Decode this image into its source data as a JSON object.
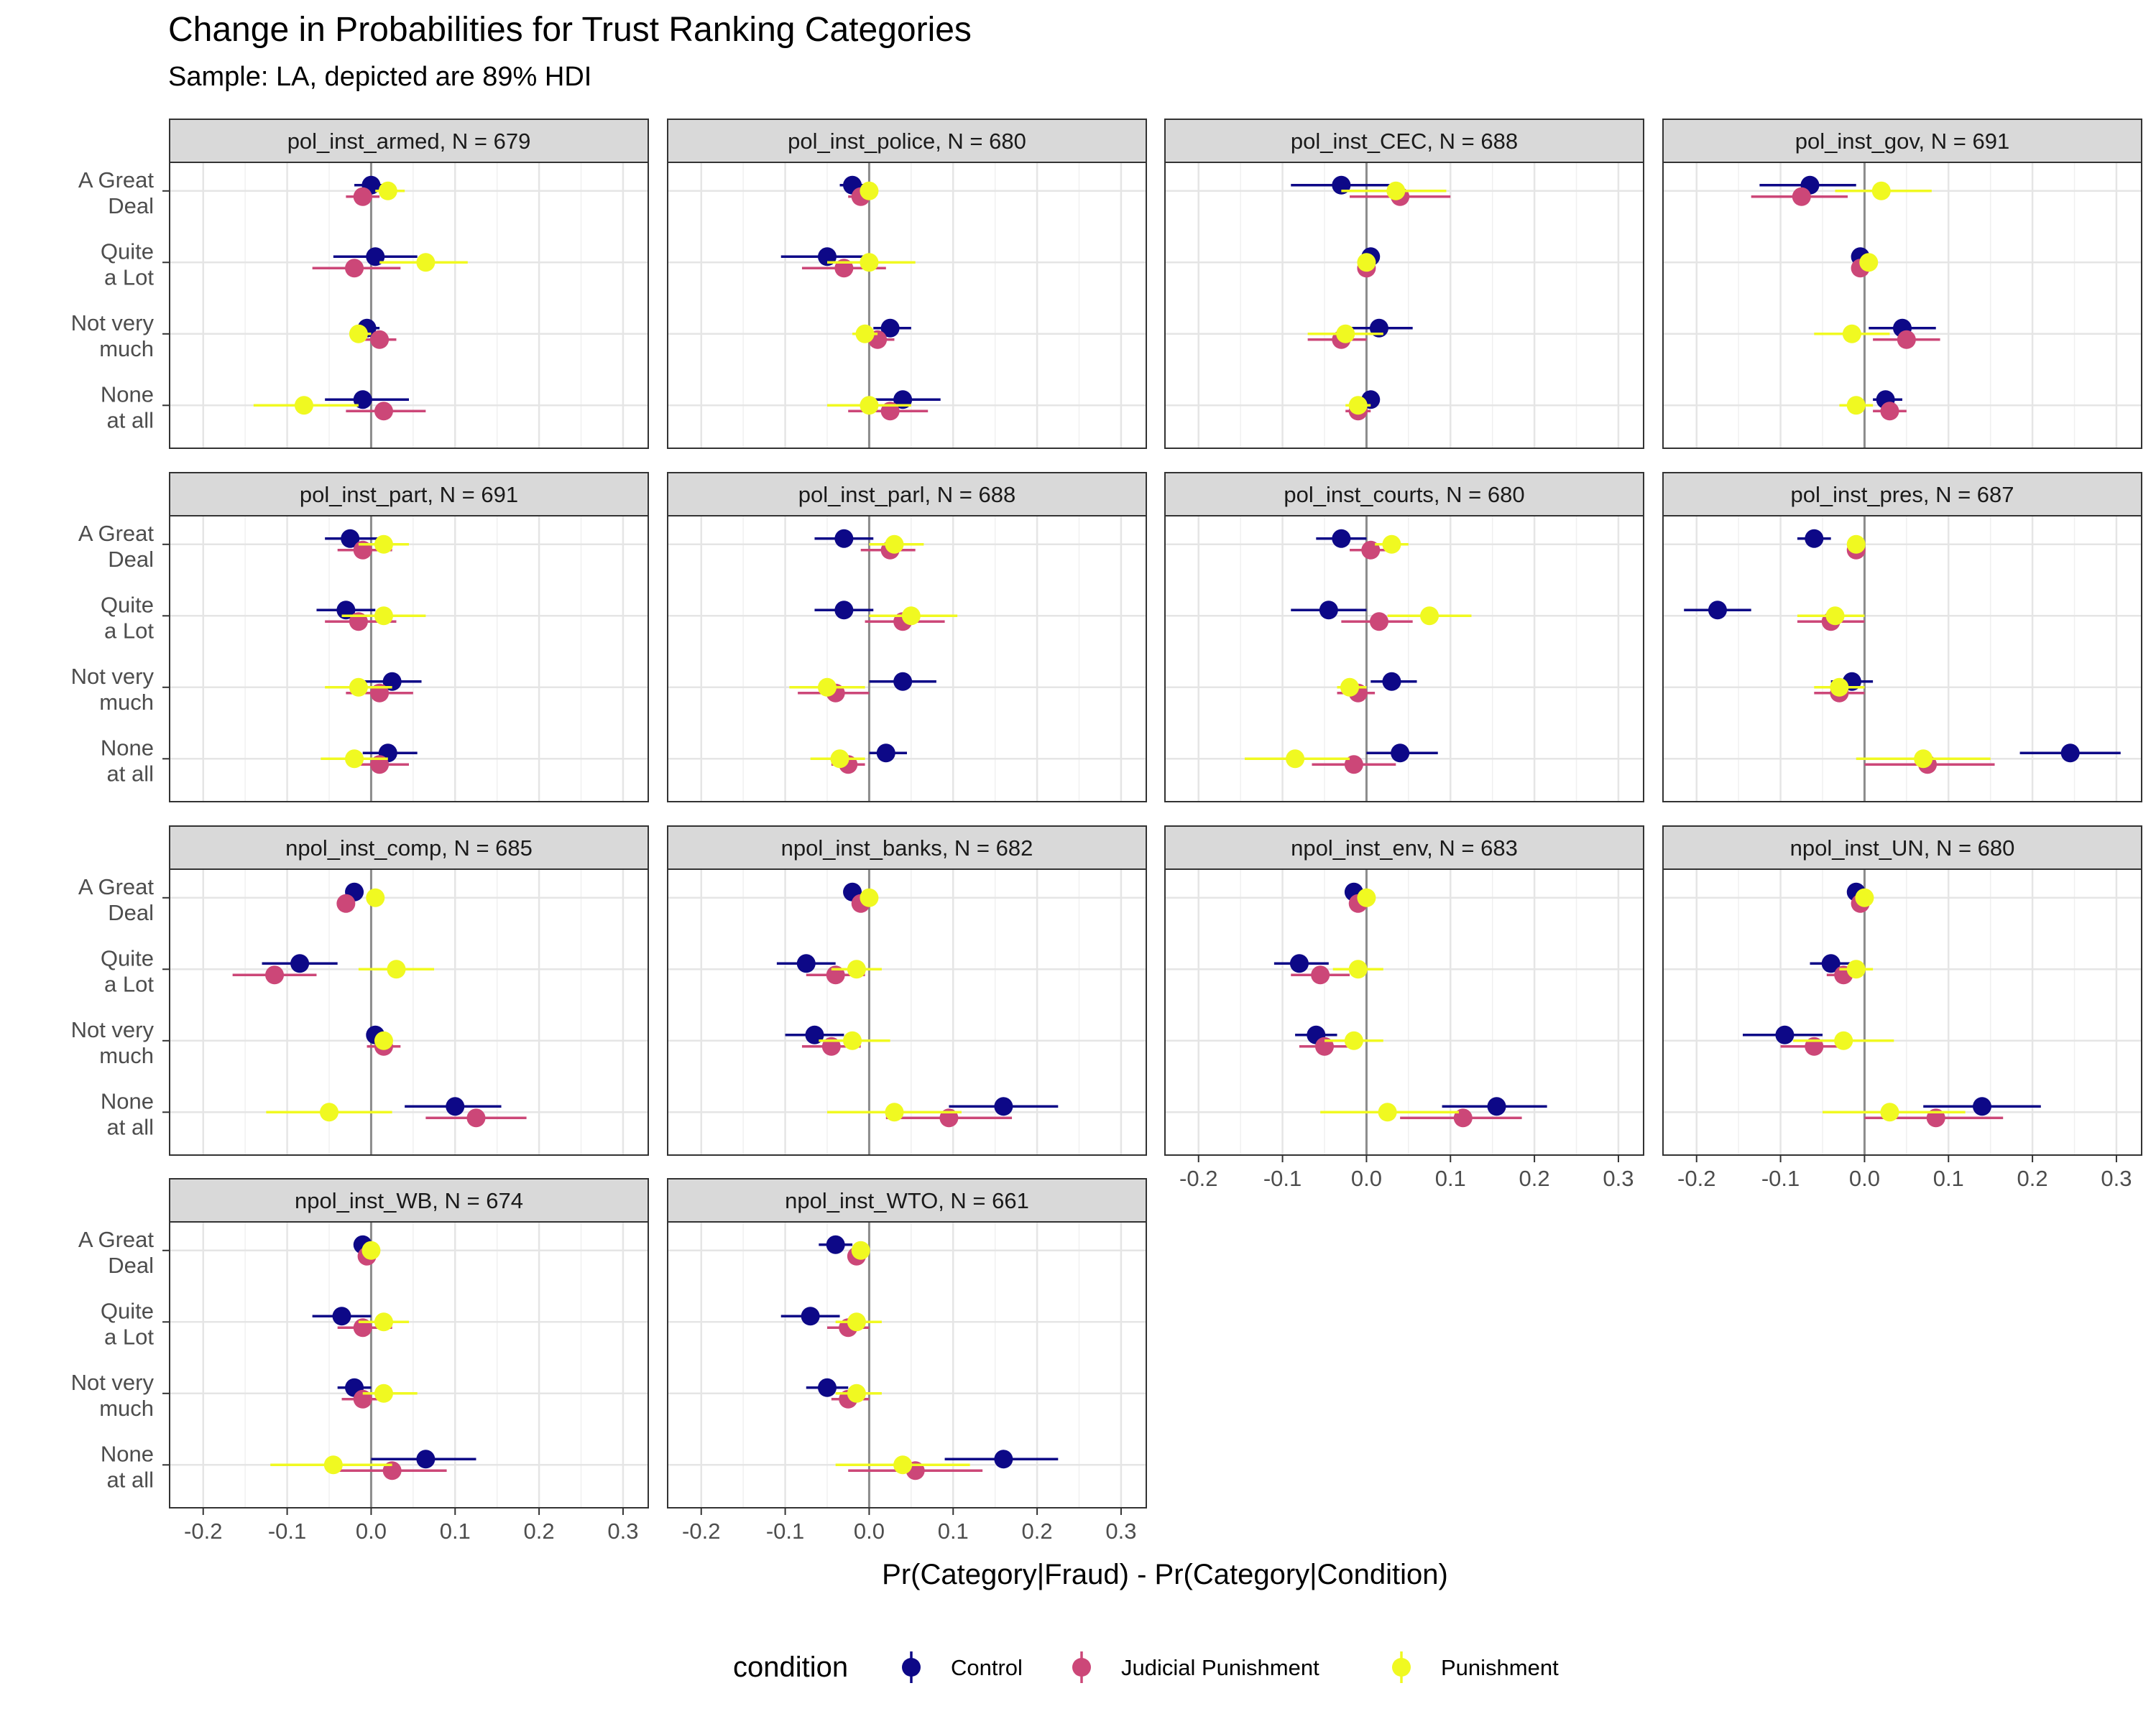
{
  "chart_data": {
    "type": "scatter",
    "title": "Change in Probabilities for Trust Ranking Categories",
    "subtitle": "Sample: LA, depicted are 89% HDI",
    "xlabel": "Pr(Category|Fraud) - Pr(Category|Condition)",
    "ylabel": "",
    "xlim": [
      -0.24,
      0.33
    ],
    "x_ticks": [
      -0.2,
      -0.1,
      0.0,
      0.1,
      0.2,
      0.3
    ],
    "x_tick_labels": [
      "-0.2",
      "-0.1",
      "0.0",
      "0.1",
      "0.2",
      "0.3"
    ],
    "categories": [
      [
        "A Great",
        "Deal"
      ],
      [
        "Quite",
        "a Lot"
      ],
      [
        "Not very",
        "much"
      ],
      [
        "None",
        "at all"
      ]
    ],
    "legend": {
      "title": "condition",
      "position": "bottom",
      "entries": [
        {
          "name": "Control",
          "color": "#0d0887"
        },
        {
          "name": "Judicial Punishment",
          "color": "#cc4778"
        },
        {
          "name": "Punishment",
          "color": "#f0f921"
        }
      ]
    },
    "reference_line_x": 0,
    "grid": true,
    "panels": [
      {
        "label": "pol_inst_armed, N = 679",
        "series": [
          {
            "name": "Control",
            "x": [
              0.0,
              0.005,
              -0.005,
              -0.01
            ],
            "lo": [
              -0.02,
              -0.045,
              -0.02,
              -0.055
            ],
            "hi": [
              0.02,
              0.055,
              0.01,
              0.045
            ]
          },
          {
            "name": "Judicial Punishment",
            "x": [
              -0.01,
              -0.02,
              0.01,
              0.015
            ],
            "lo": [
              -0.03,
              -0.07,
              -0.01,
              -0.03
            ],
            "hi": [
              0.01,
              0.035,
              0.03,
              0.065
            ]
          },
          {
            "name": "Punishment",
            "x": [
              0.02,
              0.065,
              -0.015,
              -0.08
            ],
            "lo": [
              0.005,
              0.01,
              -0.025,
              -0.14
            ],
            "hi": [
              0.04,
              0.115,
              0.0,
              -0.015
            ]
          }
        ]
      },
      {
        "label": "pol_inst_police, N = 680",
        "series": [
          {
            "name": "Control",
            "x": [
              -0.02,
              -0.05,
              0.025,
              0.04
            ],
            "lo": [
              -0.035,
              -0.105,
              0.005,
              0.0
            ],
            "hi": [
              -0.005,
              -0.005,
              0.05,
              0.085
            ]
          },
          {
            "name": "Judicial Punishment",
            "x": [
              -0.01,
              -0.03,
              0.01,
              0.025
            ],
            "lo": [
              -0.025,
              -0.08,
              -0.005,
              -0.025
            ],
            "hi": [
              0.0,
              0.02,
              0.03,
              0.07
            ]
          },
          {
            "name": "Punishment",
            "x": [
              0.0,
              0.0,
              -0.005,
              0.0
            ],
            "lo": [
              -0.01,
              -0.05,
              -0.02,
              -0.05
            ],
            "hi": [
              0.01,
              0.055,
              0.01,
              0.05
            ]
          }
        ]
      },
      {
        "label": "pol_inst_CEC, N = 688",
        "series": [
          {
            "name": "Control",
            "x": [
              -0.03,
              0.005,
              0.015,
              0.005
            ],
            "lo": [
              -0.09,
              -0.005,
              -0.02,
              -0.005
            ],
            "hi": [
              0.035,
              0.015,
              0.055,
              0.015
            ]
          },
          {
            "name": "Judicial Punishment",
            "x": [
              0.04,
              0.0,
              -0.03,
              -0.01
            ],
            "lo": [
              -0.02,
              -0.01,
              -0.07,
              -0.025
            ],
            "hi": [
              0.1,
              0.01,
              0.0,
              0.005
            ]
          },
          {
            "name": "Punishment",
            "x": [
              0.035,
              0.0,
              -0.025,
              -0.01
            ],
            "lo": [
              -0.03,
              -0.01,
              -0.07,
              -0.025
            ],
            "hi": [
              0.095,
              0.01,
              0.02,
              0.005
            ]
          }
        ]
      },
      {
        "label": "pol_inst_gov, N = 691",
        "series": [
          {
            "name": "Control",
            "x": [
              -0.065,
              -0.005,
              0.045,
              0.025
            ],
            "lo": [
              -0.125,
              -0.015,
              0.005,
              0.01
            ],
            "hi": [
              -0.01,
              0.005,
              0.085,
              0.045
            ]
          },
          {
            "name": "Judicial Punishment",
            "x": [
              -0.075,
              -0.005,
              0.05,
              0.03
            ],
            "lo": [
              -0.135,
              -0.015,
              0.01,
              0.01
            ],
            "hi": [
              -0.02,
              0.005,
              0.09,
              0.05
            ]
          },
          {
            "name": "Punishment",
            "x": [
              0.02,
              0.005,
              -0.015,
              -0.01
            ],
            "lo": [
              -0.035,
              -0.005,
              -0.06,
              -0.03
            ],
            "hi": [
              0.08,
              0.015,
              0.03,
              0.01
            ]
          }
        ]
      },
      {
        "label": "pol_inst_part, N = 691",
        "series": [
          {
            "name": "Control",
            "x": [
              -0.025,
              -0.03,
              0.025,
              0.02
            ],
            "lo": [
              -0.055,
              -0.065,
              -0.01,
              -0.01
            ],
            "hi": [
              0.01,
              0.005,
              0.06,
              0.055
            ]
          },
          {
            "name": "Judicial Punishment",
            "x": [
              -0.01,
              -0.015,
              0.01,
              0.01
            ],
            "lo": [
              -0.04,
              -0.055,
              -0.03,
              -0.025
            ],
            "hi": [
              0.025,
              0.03,
              0.05,
              0.045
            ]
          },
          {
            "name": "Punishment",
            "x": [
              0.015,
              0.015,
              -0.015,
              -0.02
            ],
            "lo": [
              -0.015,
              -0.035,
              -0.055,
              -0.06
            ],
            "hi": [
              0.045,
              0.065,
              0.025,
              0.02
            ]
          }
        ]
      },
      {
        "label": "pol_inst_parl, N = 688",
        "series": [
          {
            "name": "Control",
            "x": [
              -0.03,
              -0.03,
              0.04,
              0.02
            ],
            "lo": [
              -0.065,
              -0.065,
              0.0,
              0.0
            ],
            "hi": [
              0.005,
              0.005,
              0.08,
              0.045
            ]
          },
          {
            "name": "Judicial Punishment",
            "x": [
              0.025,
              0.04,
              -0.04,
              -0.025
            ],
            "lo": [
              -0.01,
              -0.005,
              -0.085,
              -0.045
            ],
            "hi": [
              0.055,
              0.09,
              0.0,
              -0.005
            ]
          },
          {
            "name": "Punishment",
            "x": [
              0.03,
              0.05,
              -0.05,
              -0.035
            ],
            "lo": [
              0.0,
              0.0,
              -0.095,
              -0.07
            ],
            "hi": [
              0.065,
              0.105,
              -0.005,
              -0.005
            ]
          }
        ]
      },
      {
        "label": "pol_inst_courts, N = 680",
        "series": [
          {
            "name": "Control",
            "x": [
              -0.03,
              -0.045,
              0.03,
              0.04
            ],
            "lo": [
              -0.06,
              -0.09,
              0.005,
              0.0
            ],
            "hi": [
              0.0,
              0.0,
              0.06,
              0.085
            ]
          },
          {
            "name": "Judicial Punishment",
            "x": [
              0.005,
              0.015,
              -0.01,
              -0.015
            ],
            "lo": [
              -0.02,
              -0.03,
              -0.035,
              -0.065
            ],
            "hi": [
              0.025,
              0.055,
              0.01,
              0.035
            ]
          },
          {
            "name": "Punishment",
            "x": [
              0.03,
              0.075,
              -0.02,
              -0.085
            ],
            "lo": [
              0.01,
              0.025,
              -0.035,
              -0.145
            ],
            "hi": [
              0.05,
              0.125,
              0.0,
              -0.02
            ]
          }
        ]
      },
      {
        "label": "pol_inst_pres, N = 687",
        "series": [
          {
            "name": "Control",
            "x": [
              -0.06,
              -0.175,
              -0.015,
              0.245
            ],
            "lo": [
              -0.08,
              -0.215,
              -0.04,
              0.185
            ],
            "hi": [
              -0.04,
              -0.135,
              0.01,
              0.305
            ]
          },
          {
            "name": "Judicial Punishment",
            "x": [
              -0.01,
              -0.04,
              -0.03,
              0.075
            ],
            "lo": [
              -0.02,
              -0.08,
              -0.06,
              0.0
            ],
            "hi": [
              0.0,
              0.0,
              0.0,
              0.155
            ]
          },
          {
            "name": "Punishment",
            "x": [
              -0.01,
              -0.035,
              -0.03,
              0.07
            ],
            "lo": [
              -0.02,
              -0.08,
              -0.06,
              -0.01
            ],
            "hi": [
              0.0,
              0.0,
              0.0,
              0.15
            ]
          }
        ]
      },
      {
        "label": "npol_inst_comp, N = 685",
        "series": [
          {
            "name": "Control",
            "x": [
              -0.02,
              -0.085,
              0.005,
              0.1
            ],
            "lo": [
              -0.03,
              -0.13,
              -0.005,
              0.04
            ],
            "hi": [
              -0.01,
              -0.04,
              0.015,
              0.155
            ]
          },
          {
            "name": "Judicial Punishment",
            "x": [
              -0.03,
              -0.115,
              0.015,
              0.125
            ],
            "lo": [
              -0.04,
              -0.165,
              -0.005,
              0.065
            ],
            "hi": [
              -0.02,
              -0.065,
              0.035,
              0.185
            ]
          },
          {
            "name": "Punishment",
            "x": [
              0.005,
              0.03,
              0.015,
              -0.05
            ],
            "lo": [
              -0.005,
              -0.015,
              0.005,
              -0.125
            ],
            "hi": [
              0.015,
              0.075,
              0.025,
              0.025
            ]
          }
        ]
      },
      {
        "label": "npol_inst_banks, N = 682",
        "series": [
          {
            "name": "Control",
            "x": [
              -0.02,
              -0.075,
              -0.065,
              0.16
            ],
            "lo": [
              -0.03,
              -0.11,
              -0.1,
              0.095
            ],
            "hi": [
              -0.01,
              -0.04,
              -0.03,
              0.225
            ]
          },
          {
            "name": "Judicial Punishment",
            "x": [
              -0.01,
              -0.04,
              -0.045,
              0.095
            ],
            "lo": [
              -0.02,
              -0.075,
              -0.08,
              0.02
            ],
            "hi": [
              0.0,
              -0.005,
              -0.01,
              0.17
            ]
          },
          {
            "name": "Punishment",
            "x": [
              0.0,
              -0.015,
              -0.02,
              0.03
            ],
            "lo": [
              -0.01,
              -0.045,
              -0.06,
              -0.05
            ],
            "hi": [
              0.01,
              0.015,
              0.025,
              0.11
            ]
          }
        ]
      },
      {
        "label": "npol_inst_env, N = 683",
        "series": [
          {
            "name": "Control",
            "x": [
              -0.015,
              -0.08,
              -0.06,
              0.155
            ],
            "lo": [
              -0.025,
              -0.11,
              -0.085,
              0.09
            ],
            "hi": [
              -0.005,
              -0.045,
              -0.035,
              0.215
            ]
          },
          {
            "name": "Judicial Punishment",
            "x": [
              -0.01,
              -0.055,
              -0.05,
              0.115
            ],
            "lo": [
              -0.02,
              -0.09,
              -0.08,
              0.04
            ],
            "hi": [
              0.0,
              -0.02,
              -0.02,
              0.185
            ]
          },
          {
            "name": "Punishment",
            "x": [
              0.0,
              -0.01,
              -0.015,
              0.025
            ],
            "lo": [
              -0.01,
              -0.04,
              -0.05,
              -0.055
            ],
            "hi": [
              0.01,
              0.02,
              0.02,
              0.11
            ]
          }
        ]
      },
      {
        "label": "npol_inst_UN, N = 680",
        "series": [
          {
            "name": "Control",
            "x": [
              -0.01,
              -0.04,
              -0.095,
              0.14
            ],
            "lo": [
              -0.015,
              -0.065,
              -0.145,
              0.07
            ],
            "hi": [
              0.0,
              -0.015,
              -0.05,
              0.21
            ]
          },
          {
            "name": "Judicial Punishment",
            "x": [
              -0.005,
              -0.025,
              -0.06,
              0.085
            ],
            "lo": [
              -0.015,
              -0.045,
              -0.1,
              0.0
            ],
            "hi": [
              0.005,
              -0.005,
              -0.02,
              0.165
            ]
          },
          {
            "name": "Punishment",
            "x": [
              0.0,
              -0.01,
              -0.025,
              0.03
            ],
            "lo": [
              -0.01,
              -0.03,
              -0.085,
              -0.05
            ],
            "hi": [
              0.01,
              0.01,
              0.035,
              0.12
            ]
          }
        ]
      },
      {
        "label": "npol_inst_WB, N = 674",
        "series": [
          {
            "name": "Control",
            "x": [
              -0.01,
              -0.035,
              -0.02,
              0.065
            ],
            "lo": [
              -0.015,
              -0.07,
              -0.04,
              0.0
            ],
            "hi": [
              0.0,
              0.0,
              0.0,
              0.125
            ]
          },
          {
            "name": "Judicial Punishment",
            "x": [
              -0.005,
              -0.01,
              -0.01,
              0.025
            ],
            "lo": [
              -0.01,
              -0.04,
              -0.035,
              -0.04
            ],
            "hi": [
              0.005,
              0.025,
              0.01,
              0.09
            ]
          },
          {
            "name": "Punishment",
            "x": [
              0.0,
              0.015,
              0.015,
              -0.045
            ],
            "lo": [
              -0.01,
              -0.015,
              -0.01,
              -0.12
            ],
            "hi": [
              0.01,
              0.045,
              0.055,
              0.025
            ]
          }
        ]
      },
      {
        "label": "npol_inst_WTO, N = 661",
        "series": [
          {
            "name": "Control",
            "x": [
              -0.04,
              -0.07,
              -0.05,
              0.16
            ],
            "lo": [
              -0.06,
              -0.105,
              -0.075,
              0.09
            ],
            "hi": [
              -0.02,
              -0.035,
              -0.025,
              0.225
            ]
          },
          {
            "name": "Judicial Punishment",
            "x": [
              -0.015,
              -0.025,
              -0.025,
              0.055
            ],
            "lo": [
              -0.025,
              -0.05,
              -0.045,
              -0.025
            ],
            "hi": [
              -0.005,
              0.0,
              0.0,
              0.135
            ]
          },
          {
            "name": "Punishment",
            "x": [
              -0.01,
              -0.015,
              -0.015,
              0.04
            ],
            "lo": [
              -0.02,
              -0.04,
              -0.04,
              -0.04
            ],
            "hi": [
              0.0,
              0.015,
              0.015,
              0.12
            ]
          }
        ]
      }
    ]
  }
}
